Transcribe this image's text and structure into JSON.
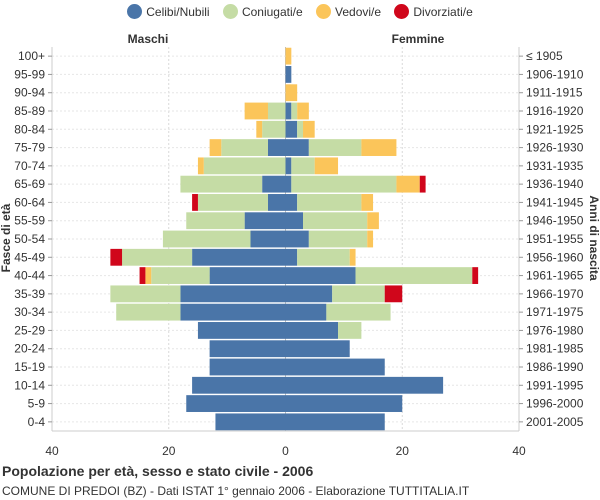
{
  "legend": {
    "celibi": "Celibi/Nubili",
    "coniugati": "Coniugati/e",
    "vedovi": "Vedovi/e",
    "divorziati": "Divorziati/e"
  },
  "colors": {
    "celibi": "#4a75a8",
    "coniugati": "#c5dca5",
    "vedovi": "#fbc55a",
    "divorziati": "#d0061b"
  },
  "labels": {
    "left_header": "Maschi",
    "right_header": "Femmine",
    "ylabel_left": "Fasce di età",
    "ylabel_right": "Anni di nascita"
  },
  "title": "Popolazione per età, sesso e stato civile - 2006",
  "subtitle": "COMUNE DI PREDOI (BZ) - Dati ISTAT 1° gennaio 2006 - Elaborazione TUTTITALIA.IT",
  "chart_data": {
    "type": "bar",
    "orientation": "horizontal-population-pyramid",
    "xlim": [
      -40,
      40
    ],
    "xticks": [
      "40",
      "20",
      "0",
      "20",
      "40"
    ],
    "grid": true,
    "categories": [
      "100+",
      "95-99",
      "90-94",
      "85-89",
      "80-84",
      "75-79",
      "70-74",
      "65-69",
      "60-64",
      "55-59",
      "50-54",
      "45-49",
      "40-44",
      "35-39",
      "30-34",
      "25-29",
      "20-24",
      "15-19",
      "10-14",
      "5-9",
      "0-4"
    ],
    "birth_years": [
      "≤ 1905",
      "1906-1910",
      "1911-1915",
      "1916-1920",
      "1921-1925",
      "1926-1930",
      "1931-1935",
      "1936-1940",
      "1941-1945",
      "1946-1950",
      "1951-1955",
      "1956-1960",
      "1961-1965",
      "1966-1970",
      "1971-1975",
      "1976-1980",
      "1981-1985",
      "1986-1990",
      "1991-1995",
      "1996-2000",
      "2001-2005"
    ],
    "series_order": [
      "celibi",
      "coniugati",
      "vedovi",
      "divorziati"
    ],
    "males": {
      "celibi": [
        0,
        0,
        0,
        0,
        0,
        3,
        0,
        4,
        3,
        7,
        6,
        16,
        13,
        18,
        18,
        15,
        13,
        13,
        16,
        17,
        12
      ],
      "coniugati": [
        0,
        0,
        0,
        3,
        4,
        8,
        14,
        14,
        12,
        10,
        15,
        12,
        10,
        12,
        11,
        0,
        0,
        0,
        0,
        0,
        0
      ],
      "vedovi": [
        0,
        0,
        0,
        4,
        1,
        2,
        1,
        0,
        0,
        0,
        0,
        0,
        1,
        0,
        0,
        0,
        0,
        0,
        0,
        0,
        0
      ],
      "divorziati": [
        0,
        0,
        0,
        0,
        0,
        0,
        0,
        0,
        1,
        0,
        0,
        2,
        1,
        0,
        0,
        0,
        0,
        0,
        0,
        0,
        0
      ]
    },
    "females": {
      "celibi": [
        0,
        1,
        0,
        1,
        2,
        4,
        1,
        1,
        2,
        3,
        4,
        2,
        12,
        8,
        7,
        9,
        11,
        17,
        27,
        20,
        17
      ],
      "coniugati": [
        0,
        0,
        0,
        1,
        1,
        9,
        4,
        18,
        11,
        11,
        10,
        9,
        20,
        9,
        11,
        4,
        0,
        0,
        0,
        0,
        0
      ],
      "vedovi": [
        1,
        0,
        2,
        2,
        2,
        6,
        4,
        4,
        2,
        2,
        1,
        1,
        0,
        0,
        0,
        0,
        0,
        0,
        0,
        0,
        0
      ],
      "divorziati": [
        0,
        0,
        0,
        0,
        0,
        0,
        0,
        1,
        0,
        0,
        0,
        0,
        1,
        3,
        0,
        0,
        0,
        0,
        0,
        0,
        0
      ]
    }
  }
}
